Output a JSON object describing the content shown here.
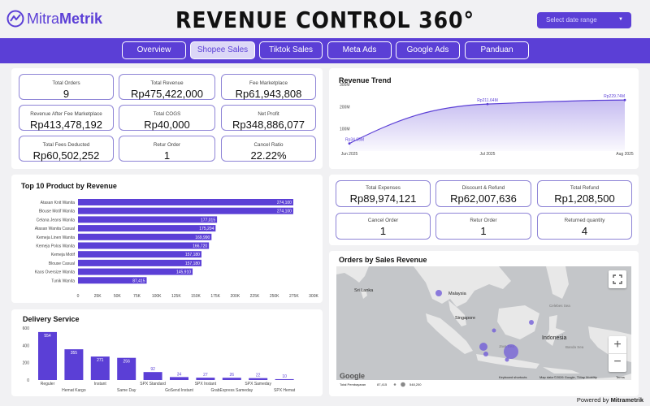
{
  "header": {
    "logo_text": "Mitra",
    "logo_text_bold": "Metrik",
    "title": "REVENUE CONTROL 360°",
    "date_placeholder": "Select date range"
  },
  "tabs": [
    {
      "label": "Overview",
      "active": false
    },
    {
      "label": "Shopee Sales",
      "active": true
    },
    {
      "label": "Tiktok Sales",
      "active": false
    },
    {
      "label": "Meta Ads",
      "active": false
    },
    {
      "label": "Google Ads",
      "active": false
    },
    {
      "label": "Panduan",
      "active": false
    }
  ],
  "kpis_top": [
    {
      "label": "Total Orders",
      "value": "9"
    },
    {
      "label": "Total Revenue",
      "value": "Rp475,422,000"
    },
    {
      "label": "Fee Marketplace",
      "value": "Rp61,943,808"
    },
    {
      "label": "Revenue After Fee Marketplace",
      "value": "Rp413,478,192"
    },
    {
      "label": "Total COGS",
      "value": "Rp40,000"
    },
    {
      "label": "Net Profit",
      "value": "Rp348,886,077"
    },
    {
      "label": "Total Fees Deducted",
      "value": "Rp60,502,252"
    },
    {
      "label": "Retur Order",
      "value": "1"
    },
    {
      "label": "Cancel Ratio",
      "value": "22.22%"
    }
  ],
  "kpis_right": [
    {
      "label": "Total Expenses",
      "value": "Rp89,974,121"
    },
    {
      "label": "Discount & Refund",
      "value": "Rp62,007,636"
    },
    {
      "label": "Total Refund",
      "value": "Rp1,208,500"
    },
    {
      "label": "Cancel Order",
      "value": "1"
    },
    {
      "label": "Retur Order",
      "value": "1"
    },
    {
      "label": "Returned quantity",
      "value": "4"
    }
  ],
  "colors": {
    "accent": "#5b3fd6",
    "bar": "#5b3fd6"
  },
  "chart_data": [
    {
      "type": "line",
      "title": "Revenue Trend",
      "x": [
        "Jun 2025",
        "Jul 2025",
        "Aug 2025"
      ],
      "values": [
        34.05,
        211.64,
        229.74
      ],
      "value_labels": [
        "Rp34.05M",
        "Rp211.64M",
        "Rp229.74M"
      ],
      "y_ticks": [
        "100M",
        "200M",
        "300M"
      ],
      "ylim": [
        0,
        300
      ]
    },
    {
      "type": "bar",
      "orientation": "horizontal",
      "title": "Top 10 Product by Revenue",
      "categories": [
        "Atasan Knit Wanita",
        "Blouse Motif Wanita",
        "Celana Jeans Wanita",
        "Atasan Wanita Casual",
        "Kemeja Linen Wanita",
        "Kemeja Polos Wanita",
        "Kemeja Motif",
        "Blouse Casual",
        "Kaos Oversize Wanita",
        "Tunik Wanita"
      ],
      "values": [
        274100,
        274100,
        177015,
        175204,
        169990,
        166720,
        157180,
        157180,
        145910,
        87415
      ],
      "value_labels": [
        "274,100",
        "274,100",
        "177,015",
        "175,204",
        "169,990",
        "166,720",
        "157,180",
        "157,180",
        "145,910",
        "87,415"
      ],
      "x_ticks": [
        "0",
        "25K",
        "50K",
        "75K",
        "100K",
        "125K",
        "150K",
        "175K",
        "200K",
        "225K",
        "250K",
        "275K",
        "300K"
      ],
      "xlim": [
        0,
        300000
      ]
    },
    {
      "type": "bar",
      "title": "Delivery Service",
      "categories": [
        "Reguler",
        "Hemat Kargo",
        "Instant",
        "Same Day",
        "SPX Standard",
        "GoSend Instant",
        "SPX Instant",
        "GrabExpress Sameday",
        "SPX Sameday",
        "SPX Hemat"
      ],
      "values": [
        554,
        355,
        271,
        256,
        92,
        34,
        27,
        26,
        22,
        10
      ],
      "y_ticks": [
        "0",
        "200",
        "400",
        "600"
      ],
      "ylim": [
        0,
        600
      ]
    }
  ],
  "map": {
    "title": "Orders by Sales Revenue",
    "labels": [
      "Sri Lanka",
      "Malaysia",
      "Singapore",
      "Indonesia",
      "Java Sea",
      "Banda Sea",
      "Celebes Sea",
      "Arafura Sea",
      "Coral Sea",
      "Timor Sea",
      "Gulf of Thailand",
      "Arafura",
      "Papua New Guinea",
      "Philippine Sea"
    ],
    "legend_label": "Total Pembayaran",
    "legend_min": "87,415",
    "legend_max": "548,200",
    "google": "Google",
    "keyboard": "Keyboard shortcuts",
    "map_data": "Map data ©2026 Google, TMap Mobility",
    "terms": "Terms"
  },
  "footer": {
    "powered": "Powered by",
    "brand": "Mitrametrik"
  }
}
